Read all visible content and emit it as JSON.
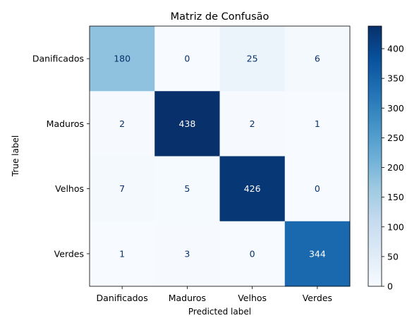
{
  "chart_data": {
    "type": "heatmap",
    "title": "Matriz de Confusão",
    "xlabel": "Predicted label",
    "ylabel": "True label",
    "x_categories": [
      "Danificados",
      "Maduros",
      "Velhos",
      "Verdes"
    ],
    "y_categories": [
      "Danificados",
      "Maduros",
      "Velhos",
      "Verdes"
    ],
    "values": [
      [
        180,
        0,
        25,
        6
      ],
      [
        2,
        438,
        2,
        1
      ],
      [
        7,
        5,
        426,
        0
      ],
      [
        1,
        3,
        0,
        344
      ]
    ],
    "colormap": "Blues",
    "colorbar": {
      "min": 0,
      "max": 438,
      "ticks": [
        0,
        50,
        100,
        150,
        200,
        250,
        300,
        350,
        400
      ]
    },
    "grid": false
  }
}
